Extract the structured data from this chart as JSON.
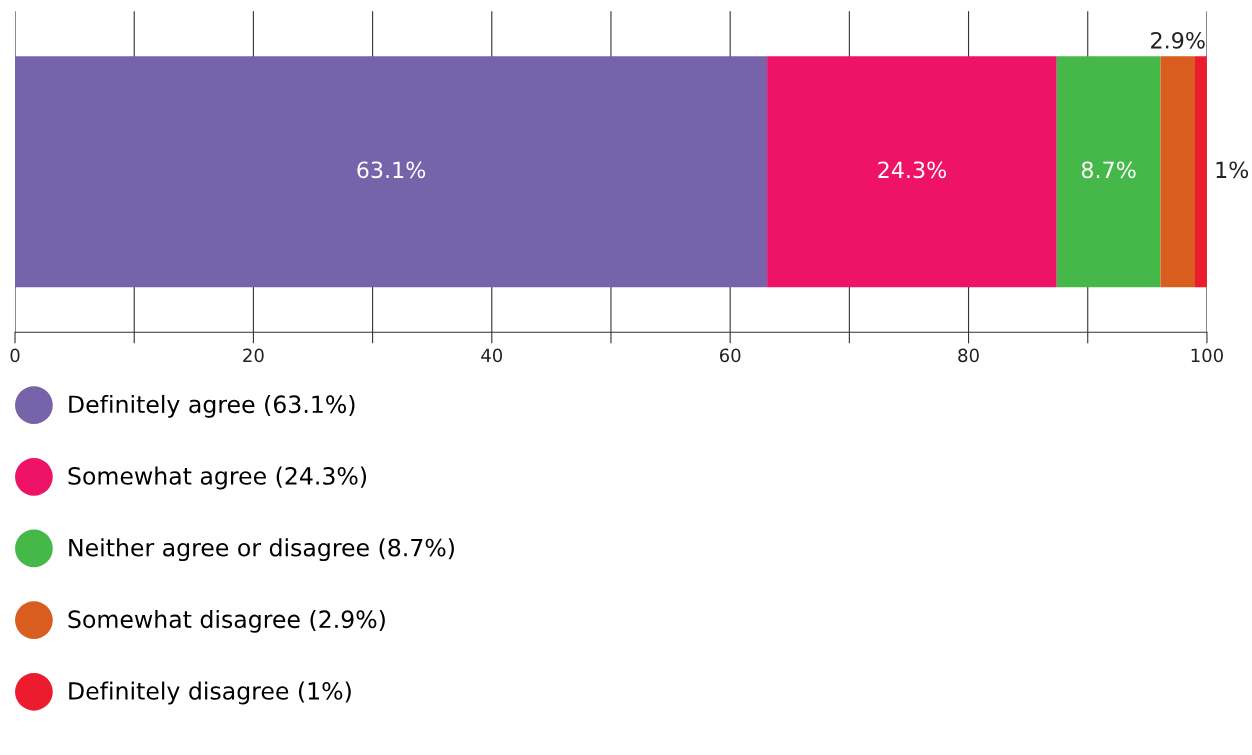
{
  "chart_data": {
    "type": "bar",
    "orientation": "horizontal",
    "stacked": true,
    "categories": [
      null
    ],
    "series": [
      {
        "name": "Definitely agree (63.1%)",
        "color": "#7763aa",
        "values": [
          63.1
        ],
        "value_labels": [
          "63.1%"
        ]
      },
      {
        "name": "Somewhat agree (24.3%)",
        "color": "#ee1367",
        "values": [
          24.3
        ],
        "value_labels": [
          "24.3%"
        ]
      },
      {
        "name": "Neither agree or disagree (8.7%)",
        "color": "#46b84a",
        "values": [
          8.7
        ],
        "value_labels": [
          "8.7%"
        ]
      },
      {
        "name": "Somewhat disagree (2.9%)",
        "color": "#d95d1e",
        "values": [
          2.9
        ],
        "value_labels": [
          "2.9%"
        ]
      },
      {
        "name": "Definitely disagree (1%)",
        "color": "#ec1c2e",
        "values": [
          1
        ],
        "value_labels": [
          "1%"
        ]
      }
    ],
    "xlim": [
      0,
      100
    ],
    "xticks": [
      0,
      {
        "value": 10,
        "label": null
      },
      20,
      {
        "value": 30,
        "label": null
      },
      40,
      {
        "value": 50,
        "label": null
      },
      60,
      {
        "value": 70,
        "label": null
      },
      80,
      {
        "value": 90,
        "label": null
      },
      100
    ],
    "grid": "x",
    "legend": "bottom left"
  }
}
